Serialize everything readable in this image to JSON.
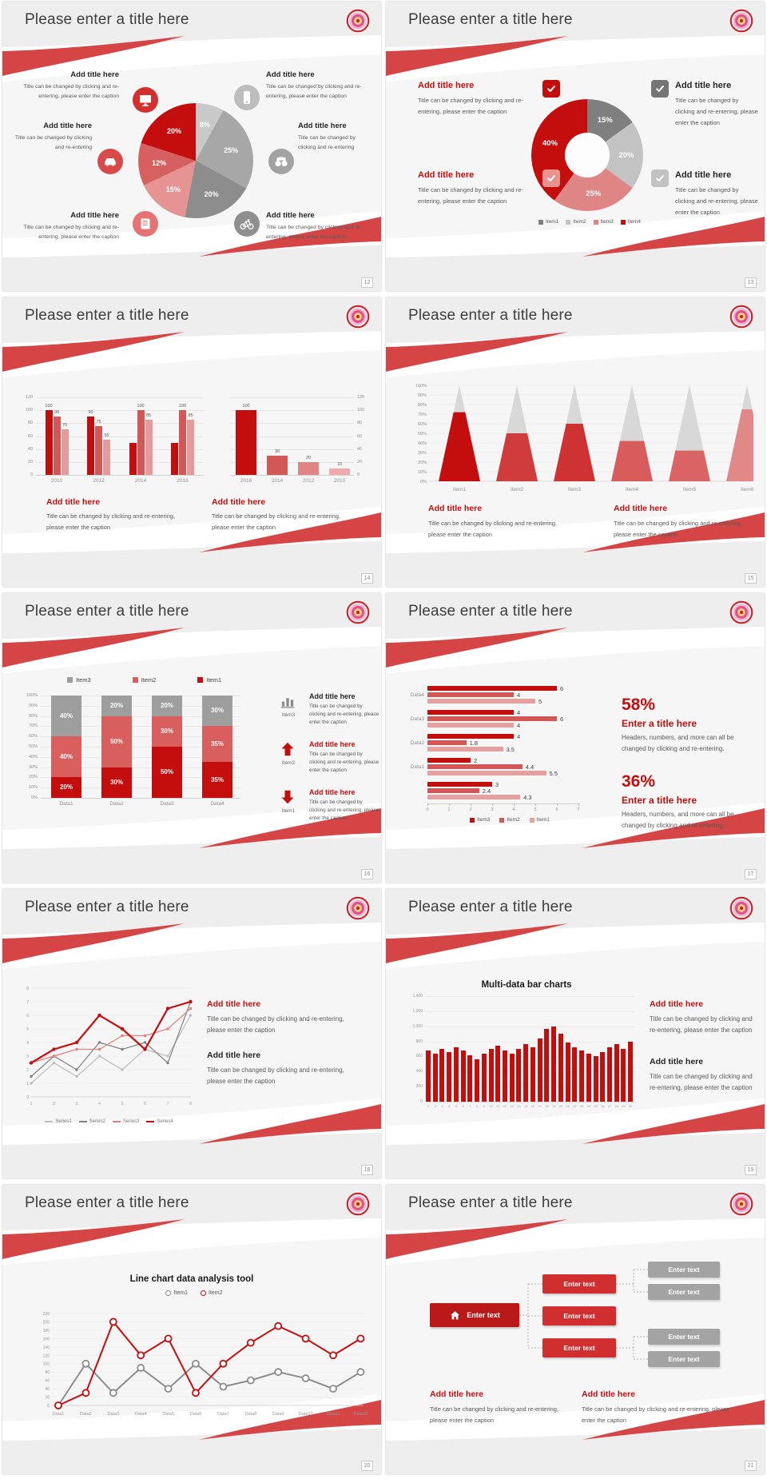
{
  "shared": {
    "slide_title": "Please enter a title here",
    "add_title": "Add title here",
    "caption_long": "Title can be changed by clicking and re-entering, please enter the caption",
    "caption_short": "Title can be changed by clicking and re-entering"
  },
  "colors": {
    "brand_ribbon_red": "#d64545",
    "dark_red": "#c40d0d",
    "medium_red": "#d25858",
    "light_red": "#e59b9b",
    "gray_dark": "#7f7f7f",
    "gray_mid": "#a6a6a6",
    "gray_light": "#c9c9c9",
    "text_dark": "#262626",
    "text_gray": "#595959"
  },
  "slides": [
    {
      "page": "12",
      "layout": "pie-with-callouts",
      "callouts": [
        {
          "heading": "Add title here",
          "caption": "Title can be changed by clicking and re-entering, please enter the caption",
          "icon": "monitor-icon",
          "icon_color": "#d32f2f"
        },
        {
          "heading": "Add title here",
          "caption": "Title can be changed by clicking and re-entering",
          "icon": "car-icon",
          "icon_color": "#d84a4a"
        },
        {
          "heading": "Add title here",
          "caption": "Title can be changed by clicking and re-entering, please enter the caption",
          "icon": "book-icon",
          "icon_color": "#e57373"
        },
        {
          "heading": "Add title here",
          "caption": "Title can be changed by clicking and re-entering, please enter the caption",
          "icon": "smartphone-icon",
          "icon_color": "#bdbdbd"
        },
        {
          "heading": "Add title here",
          "caption": "Title can be changed by clicking and re-entering",
          "icon": "binoculars-icon",
          "icon_color": "#a3a3a3"
        },
        {
          "heading": "Add title here",
          "caption": "Title can be changed by clicking and re-entering, please enter the caption",
          "icon": "bicycle-icon",
          "icon_color": "#8f8f8f"
        }
      ]
    },
    {
      "page": "13",
      "layout": "donut-with-checkboxes",
      "blocks": [
        {
          "heading": "Add title here",
          "heading_color": "#c40d0d",
          "caption": "Title can be changed by clicking and re-entering, please enter the caption",
          "check_color": "#c40d0d"
        },
        {
          "heading": "Add title here",
          "heading_color": "#c40d0d",
          "caption": "Title can be changed by clicking and re-entering, please enter the caption",
          "check_color": "#e9938f"
        },
        {
          "heading": "Add title here",
          "heading_color": "#262626",
          "caption": "Title can be changed by clicking and re-entering, please enter the caption",
          "check_color": "#757575"
        },
        {
          "heading": "Add title here",
          "heading_color": "#262626",
          "caption": "Title can be changed by clicking and re-entering, please enter the caption",
          "check_color": "#c2c2c2"
        }
      ]
    },
    {
      "page": "14",
      "layout": "dual-bar-charts",
      "blocks": [
        {
          "heading": "Add title here",
          "heading_color": "#c40d0d",
          "caption": "Title can be changed by clicking and re-entering, please enter the caption"
        },
        {
          "heading": "Add title here",
          "heading_color": "#c40d0d",
          "caption": "Title can be changed by clicking and re-entering, please enter the caption"
        }
      ]
    },
    {
      "page": "15",
      "layout": "cone-chart",
      "blocks": [
        {
          "heading": "Add title here",
          "heading_color": "#c40d0d",
          "caption": "Title can be changed by clicking and re-entering, please enter the caption"
        },
        {
          "heading": "Add title here",
          "heading_color": "#c40d0d",
          "caption": "Title can be changed by clicking and re-entering, please enter the caption"
        }
      ]
    },
    {
      "page": "16",
      "layout": "stacked-bar-with-info",
      "info": [
        {
          "icon": "bar-chart-icon",
          "icon_label": "Item3",
          "heading": "Add title here",
          "heading_color": "#262626",
          "caption": "Title can be changed by clicking and re-entering, please enter the caption"
        },
        {
          "icon": "arrow-up-icon",
          "icon_label": "Item2",
          "heading": "Add title here",
          "heading_color": "#c40d0d",
          "caption": "Title can be changed by clicking and re-entering, please enter the caption"
        },
        {
          "icon": "arrow-down-icon",
          "icon_label": "Item1",
          "heading": "Add title here",
          "heading_color": "#c40d0d",
          "caption": "Title can be changed by clicking and re-entering, please enter the caption"
        }
      ]
    },
    {
      "page": "17",
      "layout": "hbar-with-stats",
      "stats": [
        {
          "value": "58%",
          "heading": "Enter a title here",
          "caption": "Headers, numbers, and more can all be changed by clicking and re-entering."
        },
        {
          "value": "36%",
          "heading": "Enter a title here",
          "caption": "Headers, numbers, and more can all be changed by clicking and re-entering."
        }
      ]
    },
    {
      "page": "18",
      "layout": "multi-line-chart",
      "blocks": [
        {
          "heading": "Add title here",
          "heading_color": "#c40d0d",
          "caption": "Title can be changed by clicking and re-entering, please enter the caption"
        },
        {
          "heading": "Add title here",
          "heading_color": "#262626",
          "caption": "Title can be changed by clicking and re-entering, please enter the caption"
        }
      ]
    },
    {
      "page": "19",
      "layout": "multi-data-bars",
      "blocks": [
        {
          "heading": "Add title here",
          "heading_color": "#c40d0d",
          "caption": "Title can be changed by clicking and re-entering, please enter the caption"
        },
        {
          "heading": "Add title here",
          "heading_color": "#262626",
          "caption": "Title can be changed by clicking and re-entering, please enter the caption"
        }
      ]
    },
    {
      "page": "20",
      "layout": "line-analysis-tool"
    },
    {
      "page": "21",
      "layout": "flow-diagram",
      "root_label": "Enter text",
      "mid_labels": [
        "Enter text",
        "Enter text",
        "Enter text"
      ],
      "leaf_labels": [
        "Enter text",
        "Enter text",
        "Enter text",
        "Enter text"
      ],
      "blocks": [
        {
          "heading": "Add title here",
          "heading_color": "#c40d0d",
          "caption": "Title can be changed by clicking and re-entering, please enter the caption"
        },
        {
          "heading": "Add title here",
          "heading_color": "#c40d0d",
          "caption": "Title can be changed by clicking and re-entering, please enter the caption"
        }
      ]
    }
  ],
  "chart_data": [
    {
      "slide": "12",
      "type": "pie",
      "labels": [
        "8%",
        "25%",
        "20%",
        "15%",
        "12%",
        "20%"
      ],
      "values": [
        8,
        25,
        20,
        15,
        12,
        20
      ],
      "colors": [
        "#c9c9c9",
        "#a7a7a7",
        "#8d8d8d",
        "#e59393",
        "#d66060",
        "#c40d0d"
      ]
    },
    {
      "slide": "13",
      "type": "pie",
      "subtype": "donut",
      "labels": [
        "15%",
        "20%",
        "25%",
        "40%"
      ],
      "values": [
        15,
        20,
        25,
        40
      ],
      "colors": [
        "#7f7f7f",
        "#c3c3c3",
        "#e08585",
        "#c40d0d"
      ],
      "legend": [
        "Item1",
        "Item2",
        "Item3",
        "Item4"
      ]
    },
    {
      "slide": "14",
      "type": "bar",
      "position": "left",
      "categories": [
        "2010",
        "2012",
        "2014",
        "2016"
      ],
      "ylim": [
        0,
        120
      ],
      "yticks": [
        0,
        20,
        40,
        60,
        80,
        100,
        120
      ],
      "axis_side": "left",
      "series": [
        {
          "color": "#c40d0d",
          "values": [
            100,
            90,
            50,
            50
          ],
          "labels": [
            100,
            90,
            null,
            null
          ]
        },
        {
          "color": "#d25858",
          "values": [
            90,
            75,
            100,
            100
          ],
          "labels": [
            90,
            75,
            100,
            100
          ]
        },
        {
          "color": "#e59b9b",
          "values": [
            70,
            55,
            85,
            85
          ],
          "labels": [
            70,
            55,
            85,
            85
          ]
        }
      ]
    },
    {
      "slide": "14",
      "type": "bar",
      "position": "right",
      "categories": [
        "2016",
        "2014",
        "2012",
        "2010"
      ],
      "ylim": [
        0,
        120
      ],
      "yticks": [
        0,
        20,
        40,
        60,
        80,
        100,
        120
      ],
      "axis_side": "right",
      "series": [
        {
          "colors": [
            "#c40d0d",
            "#d25858",
            "#e08585",
            "#edabab"
          ],
          "values": [
            100,
            30,
            20,
            10
          ],
          "labels": [
            100,
            30,
            20,
            10
          ]
        }
      ]
    },
    {
      "slide": "15",
      "type": "bar",
      "subtype": "cone",
      "categories": [
        "Item1",
        "Item2",
        "Item3",
        "Item4",
        "Item5",
        "Item6"
      ],
      "values_pct": [
        72,
        50,
        60,
        42,
        32,
        75
      ],
      "fill_colors": [
        "#c40d0d",
        "#d03b3b",
        "#cf3232",
        "#d95c5c",
        "#da6464",
        "#e18888"
      ],
      "cone_color": "#d8d8d8",
      "yticks": [
        "0%",
        "10%",
        "20%",
        "30%",
        "40%",
        "50%",
        "60%",
        "70%",
        "80%",
        "90%",
        "100%"
      ]
    },
    {
      "slide": "16",
      "type": "bar",
      "subtype": "stacked",
      "categories": [
        "Data1",
        "Data2",
        "Data3",
        "Data4"
      ],
      "series": [
        {
          "name": "Item1",
          "color": "#c40d0d",
          "values": [
            20,
            30,
            50,
            35
          ]
        },
        {
          "name": "Item2",
          "color": "#d95f5f",
          "values": [
            40,
            50,
            30,
            35
          ]
        },
        {
          "name": "Item3",
          "color": "#9e9e9e",
          "values": [
            40,
            20,
            20,
            30
          ]
        }
      ],
      "legend_order": [
        "Item3",
        "Item2",
        "Item1"
      ],
      "yticks": [
        "0%",
        "10%",
        "20%",
        "30%",
        "40%",
        "50%",
        "60%",
        "70%",
        "80%",
        "90%",
        "100%"
      ]
    },
    {
      "slide": "17",
      "type": "bar",
      "subtype": "horizontal",
      "groups": [
        "Data4",
        "Data3",
        "Data2",
        "Data1",
        ""
      ],
      "values": [
        [
          6,
          4,
          5
        ],
        [
          4,
          6,
          4
        ],
        [
          4,
          1.8,
          3.5
        ],
        [
          2,
          4.4,
          5.5
        ],
        [
          3,
          2.4,
          4.3
        ]
      ],
      "series_colors": [
        "#c40d0d",
        "#d25858",
        "#e5a0a0"
      ],
      "xticks": [
        0,
        1,
        2,
        3,
        4,
        5,
        6,
        7
      ],
      "legend": [
        "Item3",
        "Item2",
        "Item1"
      ]
    },
    {
      "slide": "18",
      "type": "line",
      "x": [
        1,
        2,
        3,
        4,
        5,
        6,
        7,
        8
      ],
      "yticks": [
        0,
        1,
        2,
        3,
        4,
        5,
        6,
        7,
        8
      ],
      "series": [
        {
          "name": "Series1",
          "color": "#bdbdbd",
          "values": [
            1,
            2.5,
            1.5,
            3,
            2,
            3.5,
            3,
            6
          ]
        },
        {
          "name": "Series2",
          "color": "#7f7f7f",
          "values": [
            1.5,
            3,
            2,
            4,
            3.5,
            4,
            2.5,
            7
          ]
        },
        {
          "name": "Series3",
          "color": "#de8181",
          "values": [
            2.5,
            3,
            3.5,
            3.5,
            4.5,
            4.5,
            5,
            6.5
          ]
        },
        {
          "name": "Series4",
          "color": "#c40d0d",
          "values": [
            2.5,
            3.5,
            4,
            6,
            5,
            3.5,
            6.5,
            7
          ],
          "emphasis": true
        }
      ]
    },
    {
      "slide": "19",
      "type": "bar",
      "title": "Multi-data bar charts",
      "color": "#c40d0d",
      "ylim": [
        0,
        1400
      ],
      "yticks": [
        "0",
        "200",
        "400",
        "600",
        "800",
        "1,000",
        "1,200",
        "1,400"
      ],
      "categories": [
        "1",
        "2",
        "3",
        "4",
        "5",
        "6",
        "7",
        "8",
        "9",
        "10",
        "11",
        "12",
        "13",
        "14",
        "15",
        "16",
        "17",
        "18",
        "19",
        "20",
        "21",
        "22",
        "23",
        "24",
        "25",
        "26",
        "27",
        "28",
        "29",
        "30"
      ],
      "values": [
        680,
        640,
        700,
        660,
        720,
        680,
        620,
        560,
        640,
        700,
        740,
        680,
        640,
        700,
        760,
        720,
        840,
        960,
        1000,
        900,
        780,
        720,
        680,
        640,
        600,
        660,
        720,
        760,
        700,
        800
      ]
    },
    {
      "slide": "20",
      "type": "line",
      "title": "Line chart data analysis tool",
      "categories": [
        "Data1",
        "Data2",
        "Data3",
        "Data4",
        "Data5",
        "Data6",
        "Data7",
        "Data8",
        "Data9",
        "Data10",
        "Data11",
        "Data12"
      ],
      "yticks": [
        0,
        20,
        40,
        60,
        80,
        100,
        120,
        140,
        160,
        180,
        200,
        220
      ],
      "series": [
        {
          "name": "Item1",
          "color": "#8c8c8c",
          "values": [
            0,
            100,
            30,
            90,
            40,
            100,
            45,
            60,
            80,
            65,
            40,
            80
          ]
        },
        {
          "name": "Item2",
          "color": "#c40d0d",
          "values": [
            0,
            30,
            200,
            120,
            160,
            30,
            100,
            150,
            190,
            160,
            120,
            160
          ]
        }
      ]
    }
  ]
}
